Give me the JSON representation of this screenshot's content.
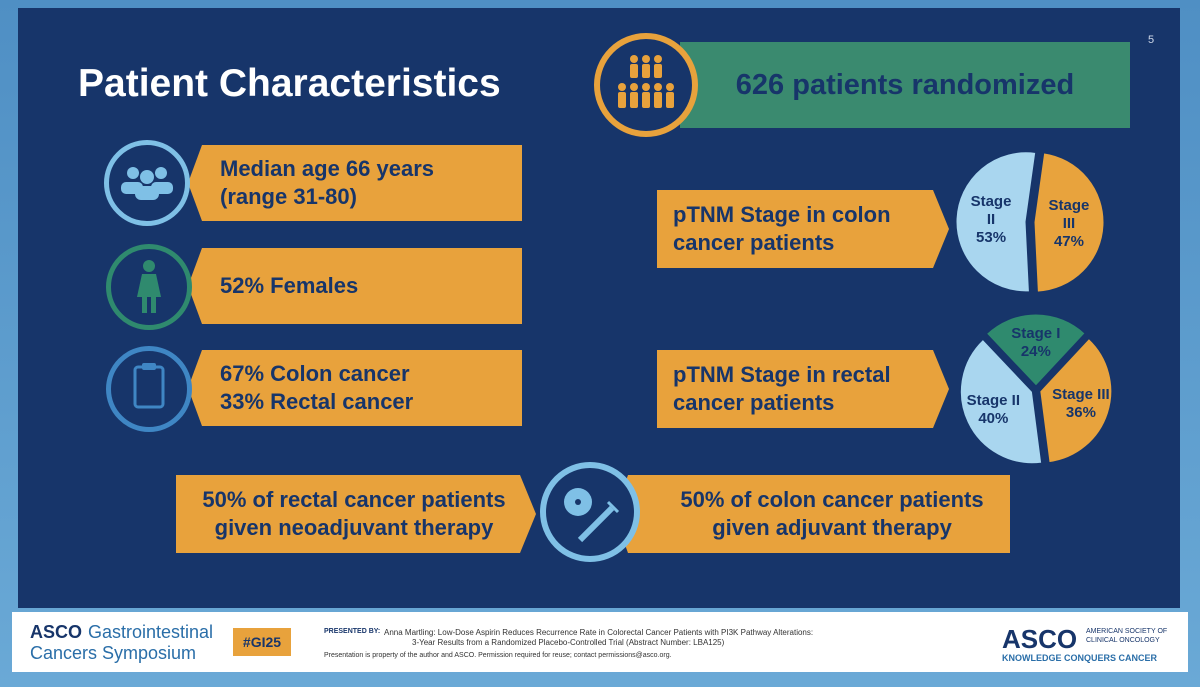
{
  "slide_number": "5",
  "title": "Patient Characteristics",
  "randomized": "626 patients randomized",
  "facts": [
    [
      "Median age 66 years",
      "(range 31-80)"
    ],
    [
      "52% Females"
    ],
    [
      "67% Colon cancer",
      "33% Rectal cancer"
    ]
  ],
  "therapy": [
    [
      "50% of rectal cancer patients",
      "given neoadjuvant therapy"
    ],
    [
      "50% of colon cancer patients",
      "given adjuvant therapy"
    ]
  ],
  "chart_data": [
    {
      "type": "pie",
      "title": "pTNM Stage in colon cancer patients",
      "categories": [
        "Stage II",
        "Stage III"
      ],
      "values": [
        53,
        47
      ],
      "value_labels": [
        "53%",
        "47%"
      ],
      "colors": [
        "#a9d6ef",
        "#e8a33d"
      ]
    },
    {
      "type": "pie",
      "title": "pTNM Stage in rectal cancer patients",
      "categories": [
        "Stage I",
        "Stage II",
        "Stage III"
      ],
      "values": [
        24,
        40,
        36
      ],
      "value_labels": [
        "24%",
        "40%",
        "36%"
      ],
      "colors": [
        "#2f8a6e",
        "#a9d6ef",
        "#e8a33d"
      ]
    }
  ],
  "footer": {
    "brand": "ASCO",
    "symposium_1": "Gastrointestinal",
    "symposium_2": "Cancers Symposium",
    "hashtag": "#GI25",
    "presented_by": "PRESENTED BY:",
    "presentation_1": "Anna Martling: Low-Dose Aspirin Reduces Recurrence Rate in Colorectal Cancer Patients with PI3K Pathway Alterations:",
    "presentation_2": "3-Year Results from a Randomized Placebo-Controlled Trial (Abstract Number: LBA125)",
    "notice": "Presentation is property of the author and ASCO. Permission required for reuse; contact permissions@asco.org.",
    "org_logo": "ASCO",
    "org_name_1": "AMERICAN SOCIETY OF",
    "org_name_2": "CLINICAL ONCOLOGY",
    "tagline": "KNOWLEDGE CONQUERS CANCER"
  }
}
